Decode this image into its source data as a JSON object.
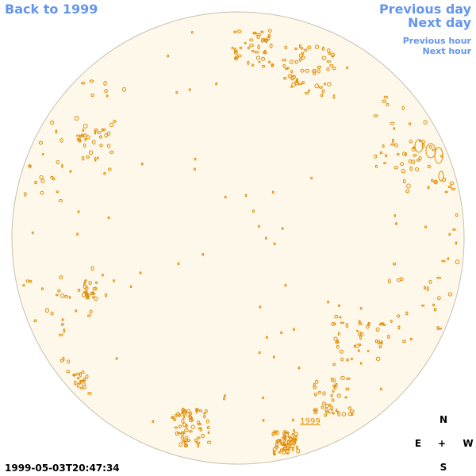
{
  "nav": {
    "back_label": "Back to 1999",
    "prev_day_label": "Previous day",
    "next_day_label": "Next day",
    "prev_hour_label": "Previous hour",
    "next_hour_label": "Next hour"
  },
  "timestamp": "1999-05-03T20:47:34",
  "compass": {
    "north": "N",
    "east": "E",
    "center": "+",
    "west": "W",
    "south": "S"
  },
  "disk": {
    "year_label": "1999",
    "fill_color": "#fdf8ea",
    "contour_color": "#e08a00",
    "limb_color": "#c8c0b0"
  }
}
